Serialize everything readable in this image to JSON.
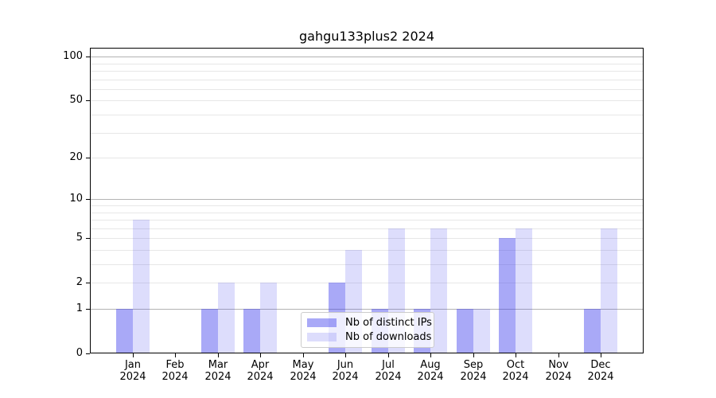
{
  "chart_data": {
    "type": "bar",
    "title": "gahgu133plus2 2024",
    "categories": [
      "Jan",
      "Feb",
      "Mar",
      "Apr",
      "May",
      "Jun",
      "Jul",
      "Aug",
      "Sep",
      "Oct",
      "Nov",
      "Dec"
    ],
    "x_sublabel": "2024",
    "series": [
      {
        "name": "Nb of distinct IPs",
        "color": "#4040ee",
        "alpha": 0.45,
        "values": [
          1,
          0,
          1,
          1,
          0,
          2,
          1,
          1,
          1,
          5,
          0,
          1
        ]
      },
      {
        "name": "Nb of downloads",
        "color": "#4040ee",
        "alpha": 0.18,
        "values": [
          7,
          0,
          2,
          2,
          0,
          4,
          6,
          6,
          1,
          6,
          0,
          6
        ]
      }
    ],
    "yscale": "log1p",
    "ylim": [
      0,
      115
    ],
    "yticks": [
      0,
      1,
      2,
      5,
      10,
      20,
      50,
      100
    ],
    "minor_yticks": [
      3,
      4,
      6,
      7,
      8,
      9,
      30,
      40,
      60,
      70,
      80,
      90
    ],
    "grid": true,
    "legend_position": "lower center"
  },
  "colors": {
    "grid_decade": "#b3b3b3",
    "grid_minor": "#e7e7e7",
    "axis": "#000000",
    "legend_border": "#cccccc",
    "background": "#ffffff"
  }
}
